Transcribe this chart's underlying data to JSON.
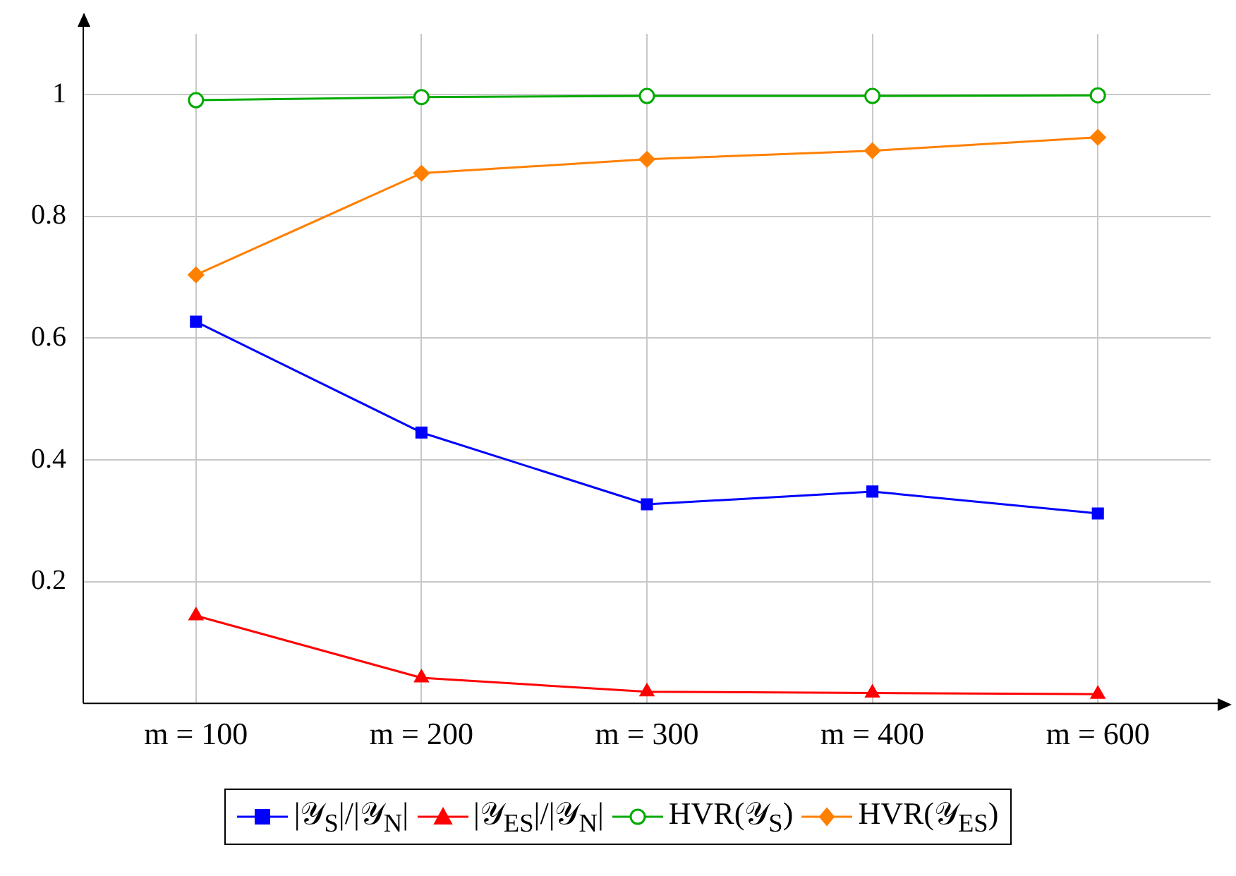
{
  "chart_data": {
    "type": "line",
    "categories": [
      "m = 100",
      "m = 200",
      "m = 300",
      "m = 400",
      "m = 600"
    ],
    "series": [
      {
        "name": "|𝒴$_{S}$|/|𝒴$_{N}$|",
        "color": "#0000ff",
        "marker": "square",
        "values": [
          0.627,
          0.445,
          0.327,
          0.348,
          0.312
        ]
      },
      {
        "name": "|𝒴$_{ES}$|/|𝒴$_{N}$|",
        "color": "#ff0000",
        "marker": "triangle",
        "values": [
          0.144,
          0.042,
          0.019,
          0.017,
          0.015
        ]
      },
      {
        "name": "HVR(𝒴$_{S}$)",
        "color": "#00aa00",
        "marker": "circle",
        "values": [
          0.991,
          0.996,
          0.998,
          0.998,
          0.999
        ]
      },
      {
        "name": "HVR(𝒴$_{ES}$)",
        "color": "#ff8000",
        "marker": "diamond",
        "values": [
          0.704,
          0.871,
          0.894,
          0.908,
          0.93
        ]
      }
    ],
    "ylim": [
      0,
      1.1
    ],
    "yticks": [
      0.2,
      0.4,
      0.6,
      0.8,
      1
    ],
    "grid": true,
    "legend": "bottom",
    "line_style": "solid"
  }
}
